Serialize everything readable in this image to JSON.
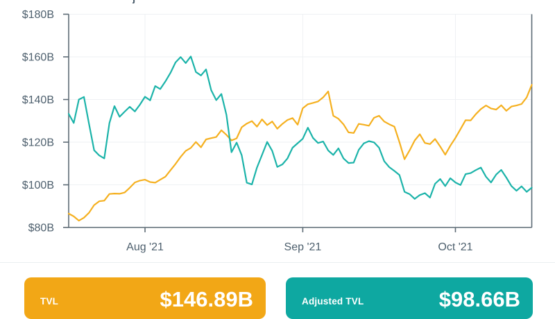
{
  "title_fragment": "j",
  "chart_data": {
    "type": "line",
    "x_unit": "day",
    "x_start_label": "Jul 17 '21 (approx.)",
    "grid": true,
    "legend_position": "none",
    "y_axis": {
      "min": 80,
      "max": 180,
      "unit": "$B",
      "ticks": [
        {
          "value": 180,
          "label": "$180B"
        },
        {
          "value": 160,
          "label": "$160B"
        },
        {
          "value": 140,
          "label": "$140B"
        },
        {
          "value": 120,
          "label": "$120B"
        },
        {
          "value": 100,
          "label": "$100B"
        },
        {
          "value": 80,
          "label": "$80B"
        }
      ]
    },
    "x_axis": {
      "ticks": [
        {
          "index": 15,
          "label": "Aug '21"
        },
        {
          "index": 46,
          "label": "Sep '21"
        },
        {
          "index": 76,
          "label": "Oct '21"
        }
      ]
    },
    "series": [
      {
        "name": "TVL",
        "color": "#F5B01F",
        "values": [
          86.5,
          85.2,
          83.2,
          84.6,
          86.9,
          90.5,
          92.3,
          92.6,
          95.7,
          95.9,
          95.8,
          96.4,
          98.6,
          101.1,
          102.0,
          102.4,
          101.3,
          101.0,
          102.4,
          103.8,
          106.8,
          109.8,
          113.1,
          115.9,
          117.3,
          120.1,
          117.6,
          121.3,
          121.9,
          122.4,
          125.6,
          123.4,
          120.8,
          121.8,
          127.0,
          128.7,
          129.9,
          127.3,
          130.7,
          128.0,
          129.7,
          126.3,
          128.6,
          130.4,
          131.3,
          128.2,
          135.9,
          137.8,
          138.4,
          139.1,
          141.0,
          143.8,
          132.4,
          131.0,
          128.4,
          124.6,
          124.3,
          128.6,
          128.2,
          127.7,
          131.4,
          132.4,
          129.7,
          128.4,
          127.3,
          120.0,
          112.0,
          116.2,
          120.8,
          123.7,
          119.6,
          119.1,
          121.5,
          118.0,
          114.1,
          118.3,
          122.0,
          126.1,
          130.3,
          130.2,
          133.1,
          135.5,
          137.2,
          135.8,
          135.3,
          137.3,
          134.7,
          136.7,
          137.2,
          137.9,
          141.0,
          146.89
        ]
      },
      {
        "name": "Adjusted TVL",
        "color": "#1BB3A9",
        "values": [
          133.3,
          129.0,
          140.0,
          141.2,
          128.6,
          116.2,
          113.8,
          112.4,
          128.9,
          136.9,
          131.9,
          134.3,
          136.6,
          134.4,
          137.6,
          141.3,
          139.6,
          146.3,
          144.9,
          148.5,
          152.5,
          157.4,
          159.9,
          157.1,
          160.2,
          152.9,
          151.3,
          154.1,
          144.4,
          139.7,
          142.6,
          132.8,
          115.3,
          119.8,
          113.9,
          101.0,
          100.2,
          108.1,
          114.0,
          120.1,
          115.9,
          108.4,
          109.6,
          112.4,
          117.4,
          119.5,
          121.6,
          126.8,
          122.0,
          119.6,
          120.3,
          116.1,
          114.0,
          117.1,
          112.4,
          110.2,
          110.4,
          116.4,
          119.4,
          120.5,
          119.9,
          117.4,
          111.1,
          108.3,
          106.5,
          104.6,
          96.7,
          95.6,
          93.4,
          95.2,
          96.1,
          94.0,
          100.5,
          102.7,
          99.4,
          103.1,
          101.1,
          99.9,
          105.0,
          105.5,
          106.9,
          108.1,
          103.8,
          101.1,
          104.8,
          107.0,
          103.4,
          99.4,
          97.2,
          99.3,
          96.7,
          98.66
        ]
      }
    ]
  },
  "cards": {
    "tvl": {
      "label": "TVL",
      "value": "$146.89B",
      "color": "#F2A716"
    },
    "adjusted_tvl": {
      "label": "Adjusted TVL",
      "value": "$98.66B",
      "color": "#0EA8A1"
    }
  }
}
